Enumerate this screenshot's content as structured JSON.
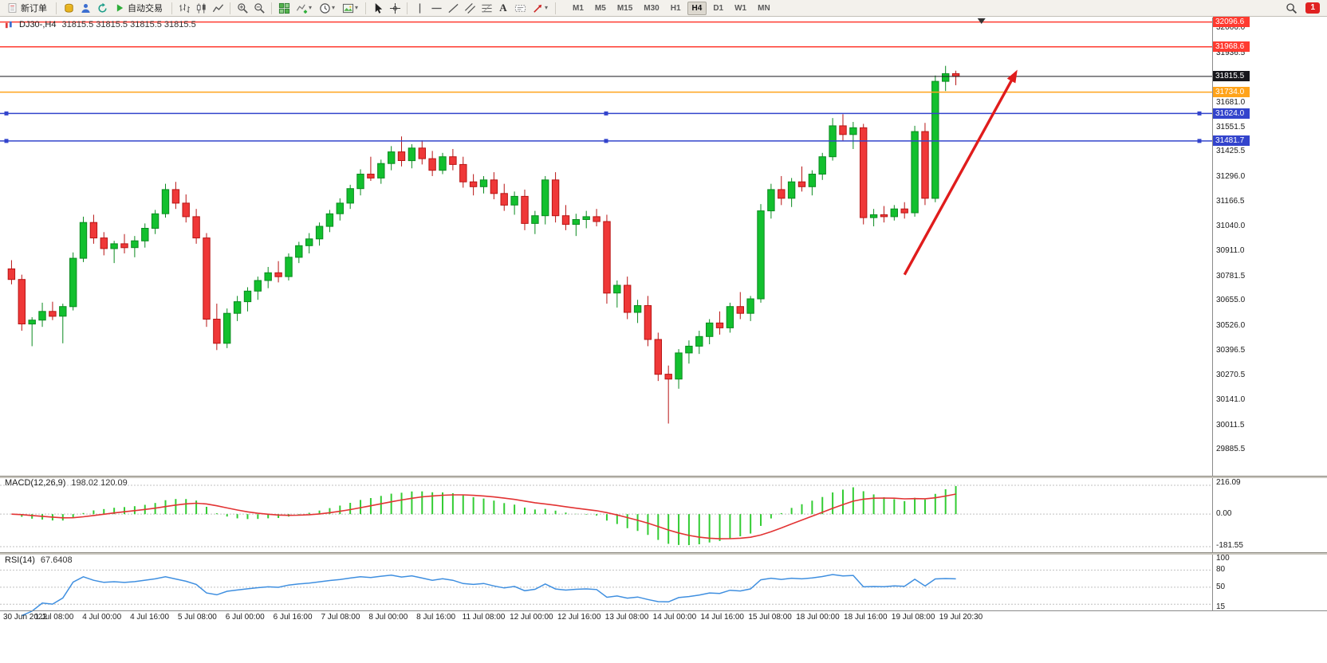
{
  "toolbar": {
    "new_order": "新订单",
    "auto_trading": "自动交易",
    "timeframes": [
      "M1",
      "M5",
      "M15",
      "M30",
      "H1",
      "H4",
      "D1",
      "W1",
      "MN"
    ],
    "active_timeframe": "H4",
    "notification_count": "1",
    "icon_names": [
      "new-order-icon",
      "coins-icon",
      "user-icon",
      "refresh-icon",
      "play-icon",
      "bars-chart-icon",
      "candlestick-chart-icon",
      "line-chart-icon",
      "zoom-in-icon",
      "zoom-out-icon",
      "tile-windows-icon",
      "indicators-icon",
      "periods-icon",
      "templates-icon",
      "cursor-icon",
      "crosshair-icon",
      "vertical-line-icon",
      "horizontal-line-icon",
      "trendline-icon",
      "channel-icon",
      "fibonacci-icon",
      "text-icon",
      "text-label-icon",
      "arrows-icon",
      "search-icon"
    ]
  },
  "chart": {
    "title": "DJ30-,H4",
    "ohlc": "31815.5 31815.5 31815.5 31815.5"
  },
  "macd": {
    "label": "MACD(12,26,9)",
    "values": "198.02 120.09",
    "scale": [
      "216.09",
      "0.00",
      "-181.55"
    ]
  },
  "rsi": {
    "label": "RSI(14)",
    "value": "67.6408",
    "scale": [
      "100",
      "80",
      "50",
      "15"
    ],
    "levels": [
      80,
      50,
      20
    ]
  },
  "colors": {
    "bull": "#12c02e",
    "bull_stroke": "#0b8a20",
    "bear": "#ef3838",
    "bear_stroke": "#b81414",
    "macd_hist": "#33cc33",
    "macd_signal": "#e23333",
    "rsi_line": "#3f8fe0",
    "line_red": "#ff3b30",
    "line_orange": "#ffa31a",
    "line_blue": "#3344cc",
    "bid": "#17171c",
    "arrow": "#e01c1c",
    "grid_dash": "#c0c0c0"
  },
  "chart_data": {
    "type": "candlestick",
    "symbol": "DJ30-",
    "period": "H4",
    "ylim": [
      29750,
      32120
    ],
    "candles": [
      [
        30820,
        30865,
        30740,
        30765
      ],
      [
        30765,
        30790,
        30500,
        30535
      ],
      [
        30535,
        30570,
        30420,
        30555
      ],
      [
        30555,
        30645,
        30520,
        30600
      ],
      [
        30600,
        30650,
        30555,
        30575
      ],
      [
        30575,
        30640,
        30435,
        30625
      ],
      [
        30625,
        30905,
        30605,
        30875
      ],
      [
        30875,
        31090,
        30855,
        31060
      ],
      [
        31060,
        31100,
        30950,
        30980
      ],
      [
        30980,
        31010,
        30890,
        30925
      ],
      [
        30925,
        30965,
        30850,
        30950
      ],
      [
        30950,
        31000,
        30900,
        30930
      ],
      [
        30930,
        30990,
        30880,
        30965
      ],
      [
        30965,
        31055,
        30930,
        31030
      ],
      [
        31030,
        31125,
        31000,
        31105
      ],
      [
        31105,
        31260,
        31085,
        31230
      ],
      [
        31230,
        31270,
        31130,
        31160
      ],
      [
        31160,
        31205,
        31060,
        31090
      ],
      [
        31090,
        31130,
        30950,
        30980
      ],
      [
        30980,
        31005,
        30520,
        30560
      ],
      [
        30560,
        30640,
        30400,
        30435
      ],
      [
        30435,
        30615,
        30410,
        30590
      ],
      [
        30590,
        30680,
        30550,
        30650
      ],
      [
        30650,
        30725,
        30600,
        30705
      ],
      [
        30705,
        30780,
        30660,
        30760
      ],
      [
        30760,
        30830,
        30720,
        30800
      ],
      [
        30800,
        30860,
        30750,
        30780
      ],
      [
        30780,
        30900,
        30760,
        30880
      ],
      [
        30880,
        30960,
        30850,
        30940
      ],
      [
        30940,
        31005,
        30900,
        30975
      ],
      [
        30975,
        31060,
        30940,
        31040
      ],
      [
        31040,
        31125,
        31010,
        31105
      ],
      [
        31105,
        31185,
        31070,
        31160
      ],
      [
        31160,
        31255,
        31130,
        31235
      ],
      [
        31235,
        31335,
        31200,
        31310
      ],
      [
        31310,
        31400,
        31275,
        31290
      ],
      [
        31290,
        31385,
        31260,
        31365
      ],
      [
        31365,
        31455,
        31330,
        31425
      ],
      [
        31425,
        31505,
        31350,
        31380
      ],
      [
        31380,
        31465,
        31340,
        31445
      ],
      [
        31445,
        31485,
        31360,
        31390
      ],
      [
        31390,
        31430,
        31300,
        31330
      ],
      [
        31330,
        31420,
        31310,
        31400
      ],
      [
        31400,
        31440,
        31330,
        31360
      ],
      [
        31360,
        31400,
        31240,
        31270
      ],
      [
        31270,
        31310,
        31200,
        31245
      ],
      [
        31245,
        31300,
        31210,
        31280
      ],
      [
        31280,
        31320,
        31180,
        31210
      ],
      [
        31210,
        31260,
        31120,
        31150
      ],
      [
        31150,
        31220,
        31100,
        31195
      ],
      [
        31195,
        31230,
        31020,
        31055
      ],
      [
        31055,
        31120,
        31000,
        31095
      ],
      [
        31095,
        31300,
        31050,
        31280
      ],
      [
        31280,
        31320,
        31060,
        31095
      ],
      [
        31095,
        31150,
        31020,
        31050
      ],
      [
        31050,
        31105,
        30990,
        31075
      ],
      [
        31075,
        31120,
        31030,
        31090
      ],
      [
        31090,
        31130,
        31040,
        31065
      ],
      [
        31065,
        31100,
        30640,
        30695
      ],
      [
        30695,
        30760,
        30620,
        30735
      ],
      [
        30735,
        30780,
        30560,
        30595
      ],
      [
        30595,
        30660,
        30540,
        30630
      ],
      [
        30630,
        30680,
        30420,
        30455
      ],
      [
        30455,
        30490,
        30240,
        30275
      ],
      [
        30275,
        30320,
        30020,
        30250
      ],
      [
        30250,
        30405,
        30200,
        30385
      ],
      [
        30385,
        30450,
        30330,
        30420
      ],
      [
        30420,
        30500,
        30380,
        30470
      ],
      [
        30470,
        30560,
        30430,
        30540
      ],
      [
        30540,
        30600,
        30480,
        30515
      ],
      [
        30515,
        30645,
        30490,
        30625
      ],
      [
        30625,
        30700,
        30560,
        30590
      ],
      [
        30590,
        30680,
        30550,
        30665
      ],
      [
        30665,
        31155,
        30645,
        31120
      ],
      [
        31120,
        31260,
        31080,
        31230
      ],
      [
        31230,
        31300,
        31150,
        31185
      ],
      [
        31185,
        31290,
        31140,
        31270
      ],
      [
        31270,
        31350,
        31220,
        31245
      ],
      [
        31245,
        31330,
        31200,
        31310
      ],
      [
        31310,
        31420,
        31280,
        31400
      ],
      [
        31400,
        31600,
        31380,
        31560
      ],
      [
        31560,
        31620,
        31480,
        31515
      ],
      [
        31515,
        31580,
        31440,
        31550
      ],
      [
        31550,
        31570,
        31050,
        31085
      ],
      [
        31085,
        31130,
        31040,
        31100
      ],
      [
        31100,
        31145,
        31060,
        31090
      ],
      [
        31090,
        31150,
        31070,
        31130
      ],
      [
        31130,
        31165,
        31080,
        31110
      ],
      [
        31110,
        31560,
        31090,
        31530
      ],
      [
        31530,
        31575,
        31150,
        31185
      ],
      [
        31185,
        31820,
        31165,
        31790
      ],
      [
        31790,
        31870,
        31740,
        31830
      ],
      [
        31830,
        31845,
        31770,
        31815.5
      ]
    ],
    "y_tick_labels": [
      "32066.0",
      "31936.5",
      "31681.0",
      "31551.5",
      "31425.5",
      "31296.0",
      "31166.5",
      "31040.0",
      "30911.0",
      "30781.5",
      "30655.0",
      "30526.0",
      "30396.5",
      "30270.5",
      "30141.0",
      "30011.5",
      "29885.5"
    ],
    "x_tick_labels": [
      "30 Jun 2022",
      "1 Jul 08:00",
      "4 Jul 00:00",
      "4 Jul 16:00",
      "5 Jul 08:00",
      "6 Jul 00:00",
      "6 Jul 16:00",
      "7 Jul 08:00",
      "8 Jul 00:00",
      "8 Jul 16:00",
      "11 Jul 08:00",
      "12 Jul 00:00",
      "12 Jul 16:00",
      "13 Jul 08:00",
      "14 Jul 00:00",
      "14 Jul 16:00",
      "15 Jul 08:00",
      "18 Jul 00:00",
      "18 Jul 16:00",
      "19 Jul 08:00",
      "19 Jul 20:30"
    ],
    "hlines": [
      {
        "label": "32096.6",
        "value": 32096.6,
        "style": "red",
        "handles": false
      },
      {
        "label": "31968.6",
        "value": 31968.6,
        "style": "red",
        "handles": false
      },
      {
        "label": "31815.5",
        "value": 31815.5,
        "style": "bid",
        "handles": false
      },
      {
        "label": "31734.0",
        "value": 31734.0,
        "style": "orange",
        "handles": false
      },
      {
        "label": "31624.0",
        "value": 31624.0,
        "style": "blue",
        "handles": true
      },
      {
        "label": "31481.7",
        "value": 31481.7,
        "style": "blue",
        "handles": true
      }
    ],
    "trend_arrow": {
      "from_bar": 87,
      "from_price": 30790,
      "to_bar": 98,
      "to_price": 31850
    },
    "indicators": {
      "macd": {
        "fast": 12,
        "slow": 26,
        "signal": 9
      },
      "rsi": {
        "period": 14
      }
    }
  }
}
